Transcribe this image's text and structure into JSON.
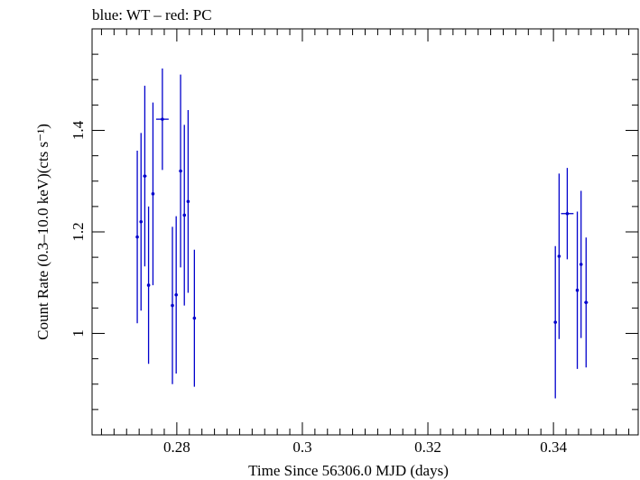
{
  "header_text": "blue: WT – red: PC",
  "chart_data": {
    "type": "scatter",
    "title": "",
    "xlabel": "Time Since 56306.0 MJD (days)",
    "ylabel": "Count Rate (0.3–10.0 keV)(cts s⁻¹)",
    "xlim": [
      0.2665,
      0.3535
    ],
    "ylim": [
      0.8,
      1.6
    ],
    "x_ticks": [
      0.28,
      0.3,
      0.32,
      0.34
    ],
    "x_tick_labels": [
      "0.28",
      "0.3",
      "0.32",
      "0.34"
    ],
    "y_ticks": [
      1.0,
      1.2,
      1.4
    ],
    "y_tick_labels": [
      "1",
      "1.2",
      "1.4"
    ],
    "grid": false,
    "series": [
      {
        "name": "WT",
        "color": "#0000cc",
        "points": [
          {
            "x": 0.2737,
            "y": 1.19,
            "xerr": 0.0002,
            "yerr": 0.17
          },
          {
            "x": 0.2743,
            "y": 1.22,
            "xerr": 0.0002,
            "yerr": 0.175
          },
          {
            "x": 0.2749,
            "y": 1.31,
            "xerr": 0.0003,
            "yerr": 0.178
          },
          {
            "x": 0.2755,
            "y": 1.095,
            "xerr": 0.0002,
            "yerr": 0.155
          },
          {
            "x": 0.2762,
            "y": 1.275,
            "xerr": 0.0002,
            "yerr": 0.18
          },
          {
            "x": 0.2777,
            "y": 1.422,
            "xerr": 0.001,
            "yerr": 0.1
          },
          {
            "x": 0.2793,
            "y": 1.055,
            "xerr": 0.0002,
            "yerr": 0.155
          },
          {
            "x": 0.2799,
            "y": 1.076,
            "xerr": 0.0002,
            "yerr": 0.155
          },
          {
            "x": 0.2806,
            "y": 1.32,
            "xerr": 0.0002,
            "yerr": 0.19
          },
          {
            "x": 0.2812,
            "y": 1.233,
            "xerr": 0.0002,
            "yerr": 0.178
          },
          {
            "x": 0.2818,
            "y": 1.26,
            "xerr": 0.0002,
            "yerr": 0.18
          },
          {
            "x": 0.2828,
            "y": 1.03,
            "xerr": 0.0002,
            "yerr": 0.135
          },
          {
            "x": 0.3403,
            "y": 1.022,
            "xerr": 0.0002,
            "yerr": 0.15
          },
          {
            "x": 0.3409,
            "y": 1.152,
            "xerr": 0.0002,
            "yerr": 0.163
          },
          {
            "x": 0.3422,
            "y": 1.236,
            "xerr": 0.001,
            "yerr": 0.09
          },
          {
            "x": 0.3438,
            "y": 1.085,
            "xerr": 0.0002,
            "yerr": 0.155
          },
          {
            "x": 0.3444,
            "y": 1.136,
            "xerr": 0.0002,
            "yerr": 0.145
          },
          {
            "x": 0.3452,
            "y": 1.061,
            "xerr": 0.0003,
            "yerr": 0.128
          }
        ]
      }
    ]
  }
}
